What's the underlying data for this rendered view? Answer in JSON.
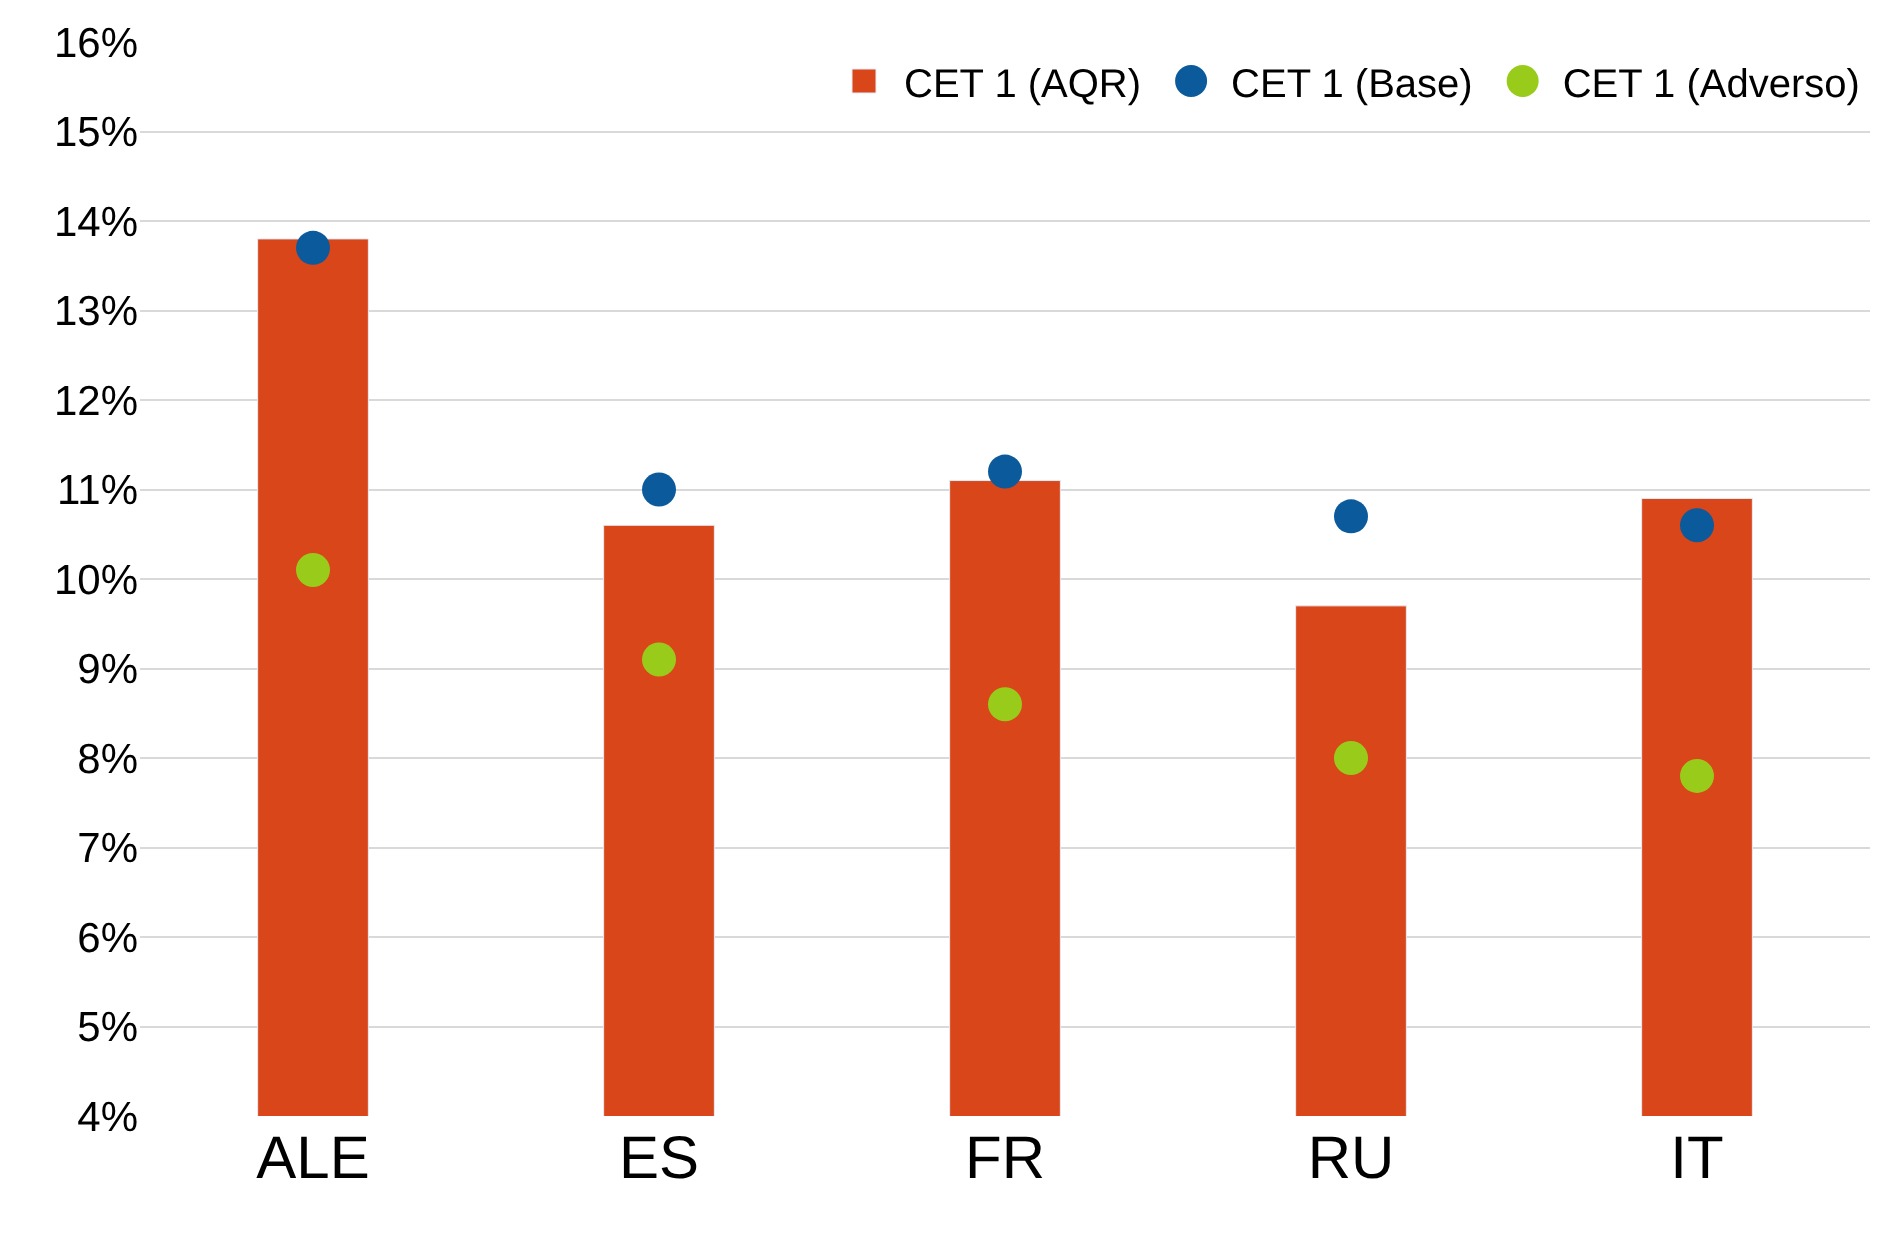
{
  "chart_data": {
    "type": "bar",
    "categories": [
      "ALE",
      "ES",
      "FR",
      "RU",
      "IT"
    ],
    "series": [
      {
        "name": "CET 1 (AQR)",
        "color": "#d9461a",
        "values": [
          13.8,
          10.6,
          11.1,
          9.7,
          10.9
        ]
      },
      {
        "name": "CET 1 (Base)",
        "color": "#0b5a9c",
        "type": "scatter",
        "marker": "circle",
        "values": [
          13.7,
          11.0,
          11.2,
          10.7,
          10.6
        ]
      },
      {
        "name": "CET 1 (Adverso)",
        "color": "#99cc1a",
        "type": "scatter",
        "marker": "circle",
        "values": [
          10.1,
          9.1,
          8.6,
          8.0,
          7.8
        ]
      }
    ],
    "ylim": [
      4,
      16
    ],
    "yticks": [
      {
        "value": 4,
        "label": "4%"
      },
      {
        "value": 5,
        "label": "5%"
      },
      {
        "value": 6,
        "label": "6%"
      },
      {
        "value": 7,
        "label": "7%"
      },
      {
        "value": 8,
        "label": "8%"
      },
      {
        "value": 9,
        "label": "9%"
      },
      {
        "value": 10,
        "label": "10%"
      },
      {
        "value": 11,
        "label": "11%"
      },
      {
        "value": 12,
        "label": "12%"
      },
      {
        "value": 13,
        "label": "13%"
      },
      {
        "value": 14,
        "label": "14%"
      },
      {
        "value": 15,
        "label": "15%"
      },
      {
        "value": 16,
        "label": "16%"
      }
    ],
    "grid": "y",
    "legend": "top right"
  }
}
